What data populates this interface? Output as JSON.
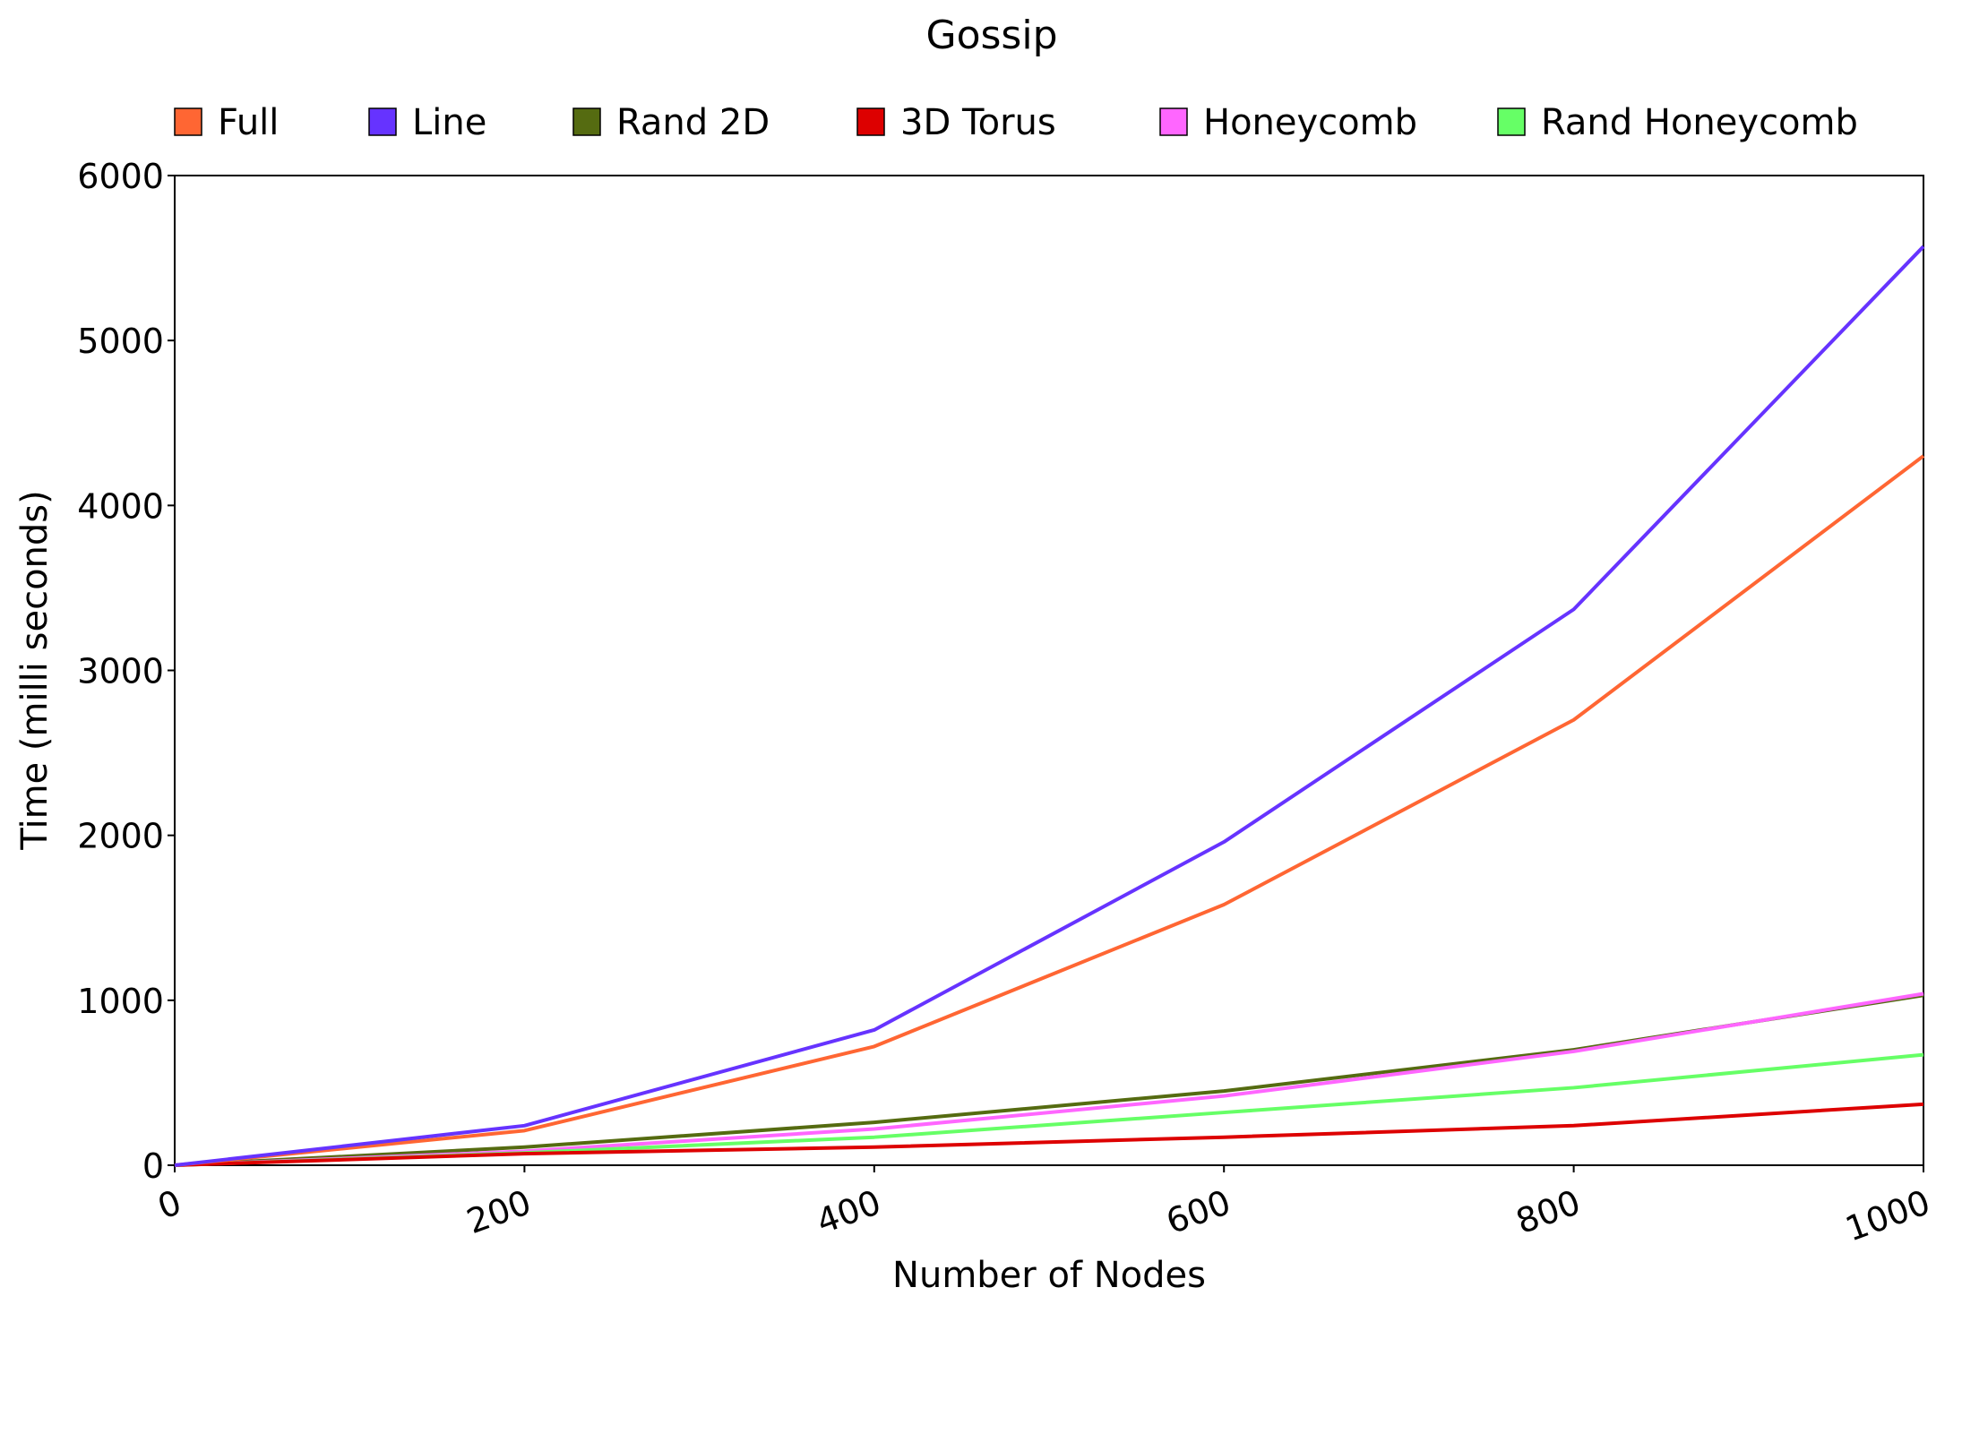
{
  "chart_data": {
    "type": "line",
    "title": "Gossip",
    "xlabel": "Number of Nodes",
    "ylabel": "Time (milli seconds)",
    "x": [
      0,
      200,
      400,
      600,
      800,
      1000
    ],
    "xlim": [
      0,
      1000
    ],
    "ylim": [
      0,
      6000
    ],
    "xticks": [
      0,
      200,
      400,
      600,
      800,
      1000
    ],
    "yticks": [
      0,
      1000,
      2000,
      3000,
      4000,
      5000,
      6000
    ],
    "grid": false,
    "legend_position": "top",
    "series": [
      {
        "name": "Full",
        "color": "#ff6633",
        "values": [
          0,
          210,
          720,
          1580,
          2700,
          4300
        ]
      },
      {
        "name": "Line",
        "color": "#6633ff",
        "values": [
          0,
          240,
          820,
          1960,
          3370,
          5570
        ]
      },
      {
        "name": "Rand 2D",
        "color": "#556b11",
        "values": [
          0,
          110,
          260,
          450,
          700,
          1030
        ]
      },
      {
        "name": "3D Torus",
        "color": "#dd0000",
        "values": [
          0,
          70,
          110,
          170,
          240,
          370
        ]
      },
      {
        "name": "Honeycomb",
        "color": "#ff66ff",
        "values": [
          0,
          85,
          220,
          420,
          690,
          1040
        ]
      },
      {
        "name": "Rand Honeycomb",
        "color": "#66ff66",
        "values": [
          0,
          75,
          170,
          320,
          470,
          670
        ]
      }
    ]
  }
}
